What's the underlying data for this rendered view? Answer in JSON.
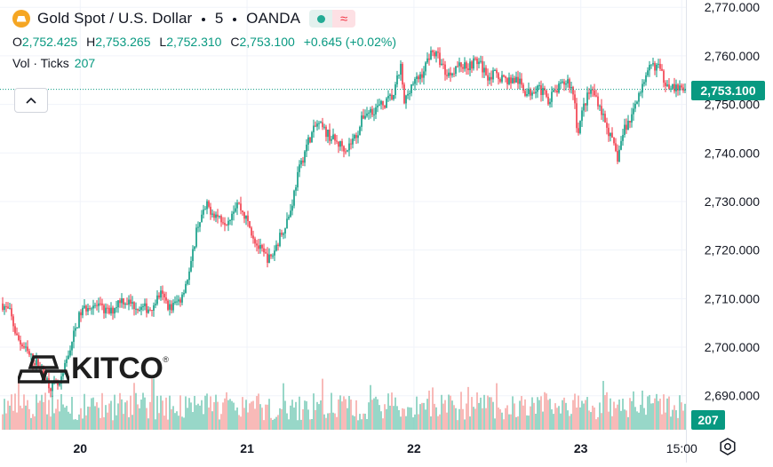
{
  "symbol": {
    "title_parts": [
      "Gold Spot / U.S. Dollar",
      "5",
      "OANDA"
    ],
    "icon": "gold-bars-icon",
    "badge_live_icon": "live-dot-icon",
    "badge_approx": "≈"
  },
  "ohlc": {
    "o_label": "O",
    "o_value": "2,752.425",
    "h_label": "H",
    "h_value": "2,753.265",
    "l_label": "L",
    "l_value": "2,752.310",
    "c_label": "C",
    "c_value": "2,753.100",
    "change": "+0.645 (+0.02%)"
  },
  "volume_legend": {
    "label": "Vol · Ticks",
    "value": "207"
  },
  "price_tag": "2,753.100",
  "volume_tag": "207",
  "logo": {
    "text": "KITCO",
    "mark": "®"
  },
  "colors": {
    "up": "#089981",
    "down": "#f23645",
    "up_vol": "#7fcdbb",
    "down_vol": "#f7a9a7",
    "grid": "#f0f3fa",
    "text": "#131722"
  },
  "chart_data": {
    "type": "candlestick",
    "y_ticks": [
      "2,770.000",
      "2,760.000",
      "2,750.000",
      "2,740.000",
      "2,730.000",
      "2,720.000",
      "2,710.000",
      "2,700.000",
      "2,690.000"
    ],
    "y_tick_values": [
      2770,
      2760,
      2750,
      2740,
      2730,
      2720,
      2710,
      2700,
      2690
    ],
    "ylim": [
      2683,
      2771.5
    ],
    "x_ticks": [
      "20",
      "21",
      "22",
      "23",
      "15:00"
    ],
    "x_tick_values": [
      0.5,
      1.5,
      2.5,
      3.5,
      4.105
    ],
    "xlim": [
      0.03,
      4.13
    ],
    "last_price": 2753.1,
    "grid": true,
    "keypoints": {
      "x": [
        0.03,
        0.08,
        0.12,
        0.16,
        0.2,
        0.26,
        0.32,
        0.38,
        0.44,
        0.5,
        0.56,
        0.62,
        0.68,
        0.74,
        0.8,
        0.86,
        0.92,
        0.98,
        1.04,
        1.1,
        1.16,
        1.2,
        1.26,
        1.32,
        1.38,
        1.44,
        1.5,
        1.56,
        1.6,
        1.64,
        1.7,
        1.76,
        1.8,
        1.86,
        1.92,
        1.98,
        2.04,
        2.1,
        2.16,
        2.2,
        2.26,
        2.32,
        2.38,
        2.42,
        2.44,
        2.48,
        2.52,
        2.56,
        2.6,
        2.64,
        2.7,
        2.76,
        2.82,
        2.88,
        2.94,
        3.0,
        3.06,
        3.12,
        3.18,
        3.24,
        3.3,
        3.36,
        3.42,
        3.46,
        3.48,
        3.52,
        3.56,
        3.6,
        3.64,
        3.68,
        3.72,
        3.76,
        3.8,
        3.84,
        3.88,
        3.92,
        3.96,
        4.0,
        4.04,
        4.08,
        4.12
      ],
      "price": [
        2709,
        2707,
        2702,
        2700,
        2698,
        2696,
        2692,
        2692,
        2700,
        2707,
        2709,
        2708,
        2707,
        2710,
        2709,
        2708,
        2708,
        2711,
        2708,
        2710,
        2716,
        2725,
        2729,
        2727,
        2726,
        2730,
        2726,
        2721,
        2719,
        2718,
        2723,
        2728,
        2735,
        2742,
        2746,
        2744,
        2742,
        2741,
        2744,
        2748,
        2749,
        2750,
        2752,
        2758,
        2750,
        2754,
        2755,
        2757,
        2761,
        2760,
        2756,
        2758,
        2758,
        2759,
        2756,
        2756,
        2755,
        2755,
        2752,
        2754,
        2751,
        2753,
        2755,
        2752,
        2744,
        2750,
        2753,
        2751,
        2747,
        2743,
        2739,
        2745,
        2747,
        2752,
        2754,
        2758,
        2758,
        2755,
        2754,
        2753,
        2753.1
      ]
    },
    "volume": {
      "ylim": [
        0,
        45
      ],
      "typical_range": [
        8,
        32
      ]
    }
  }
}
